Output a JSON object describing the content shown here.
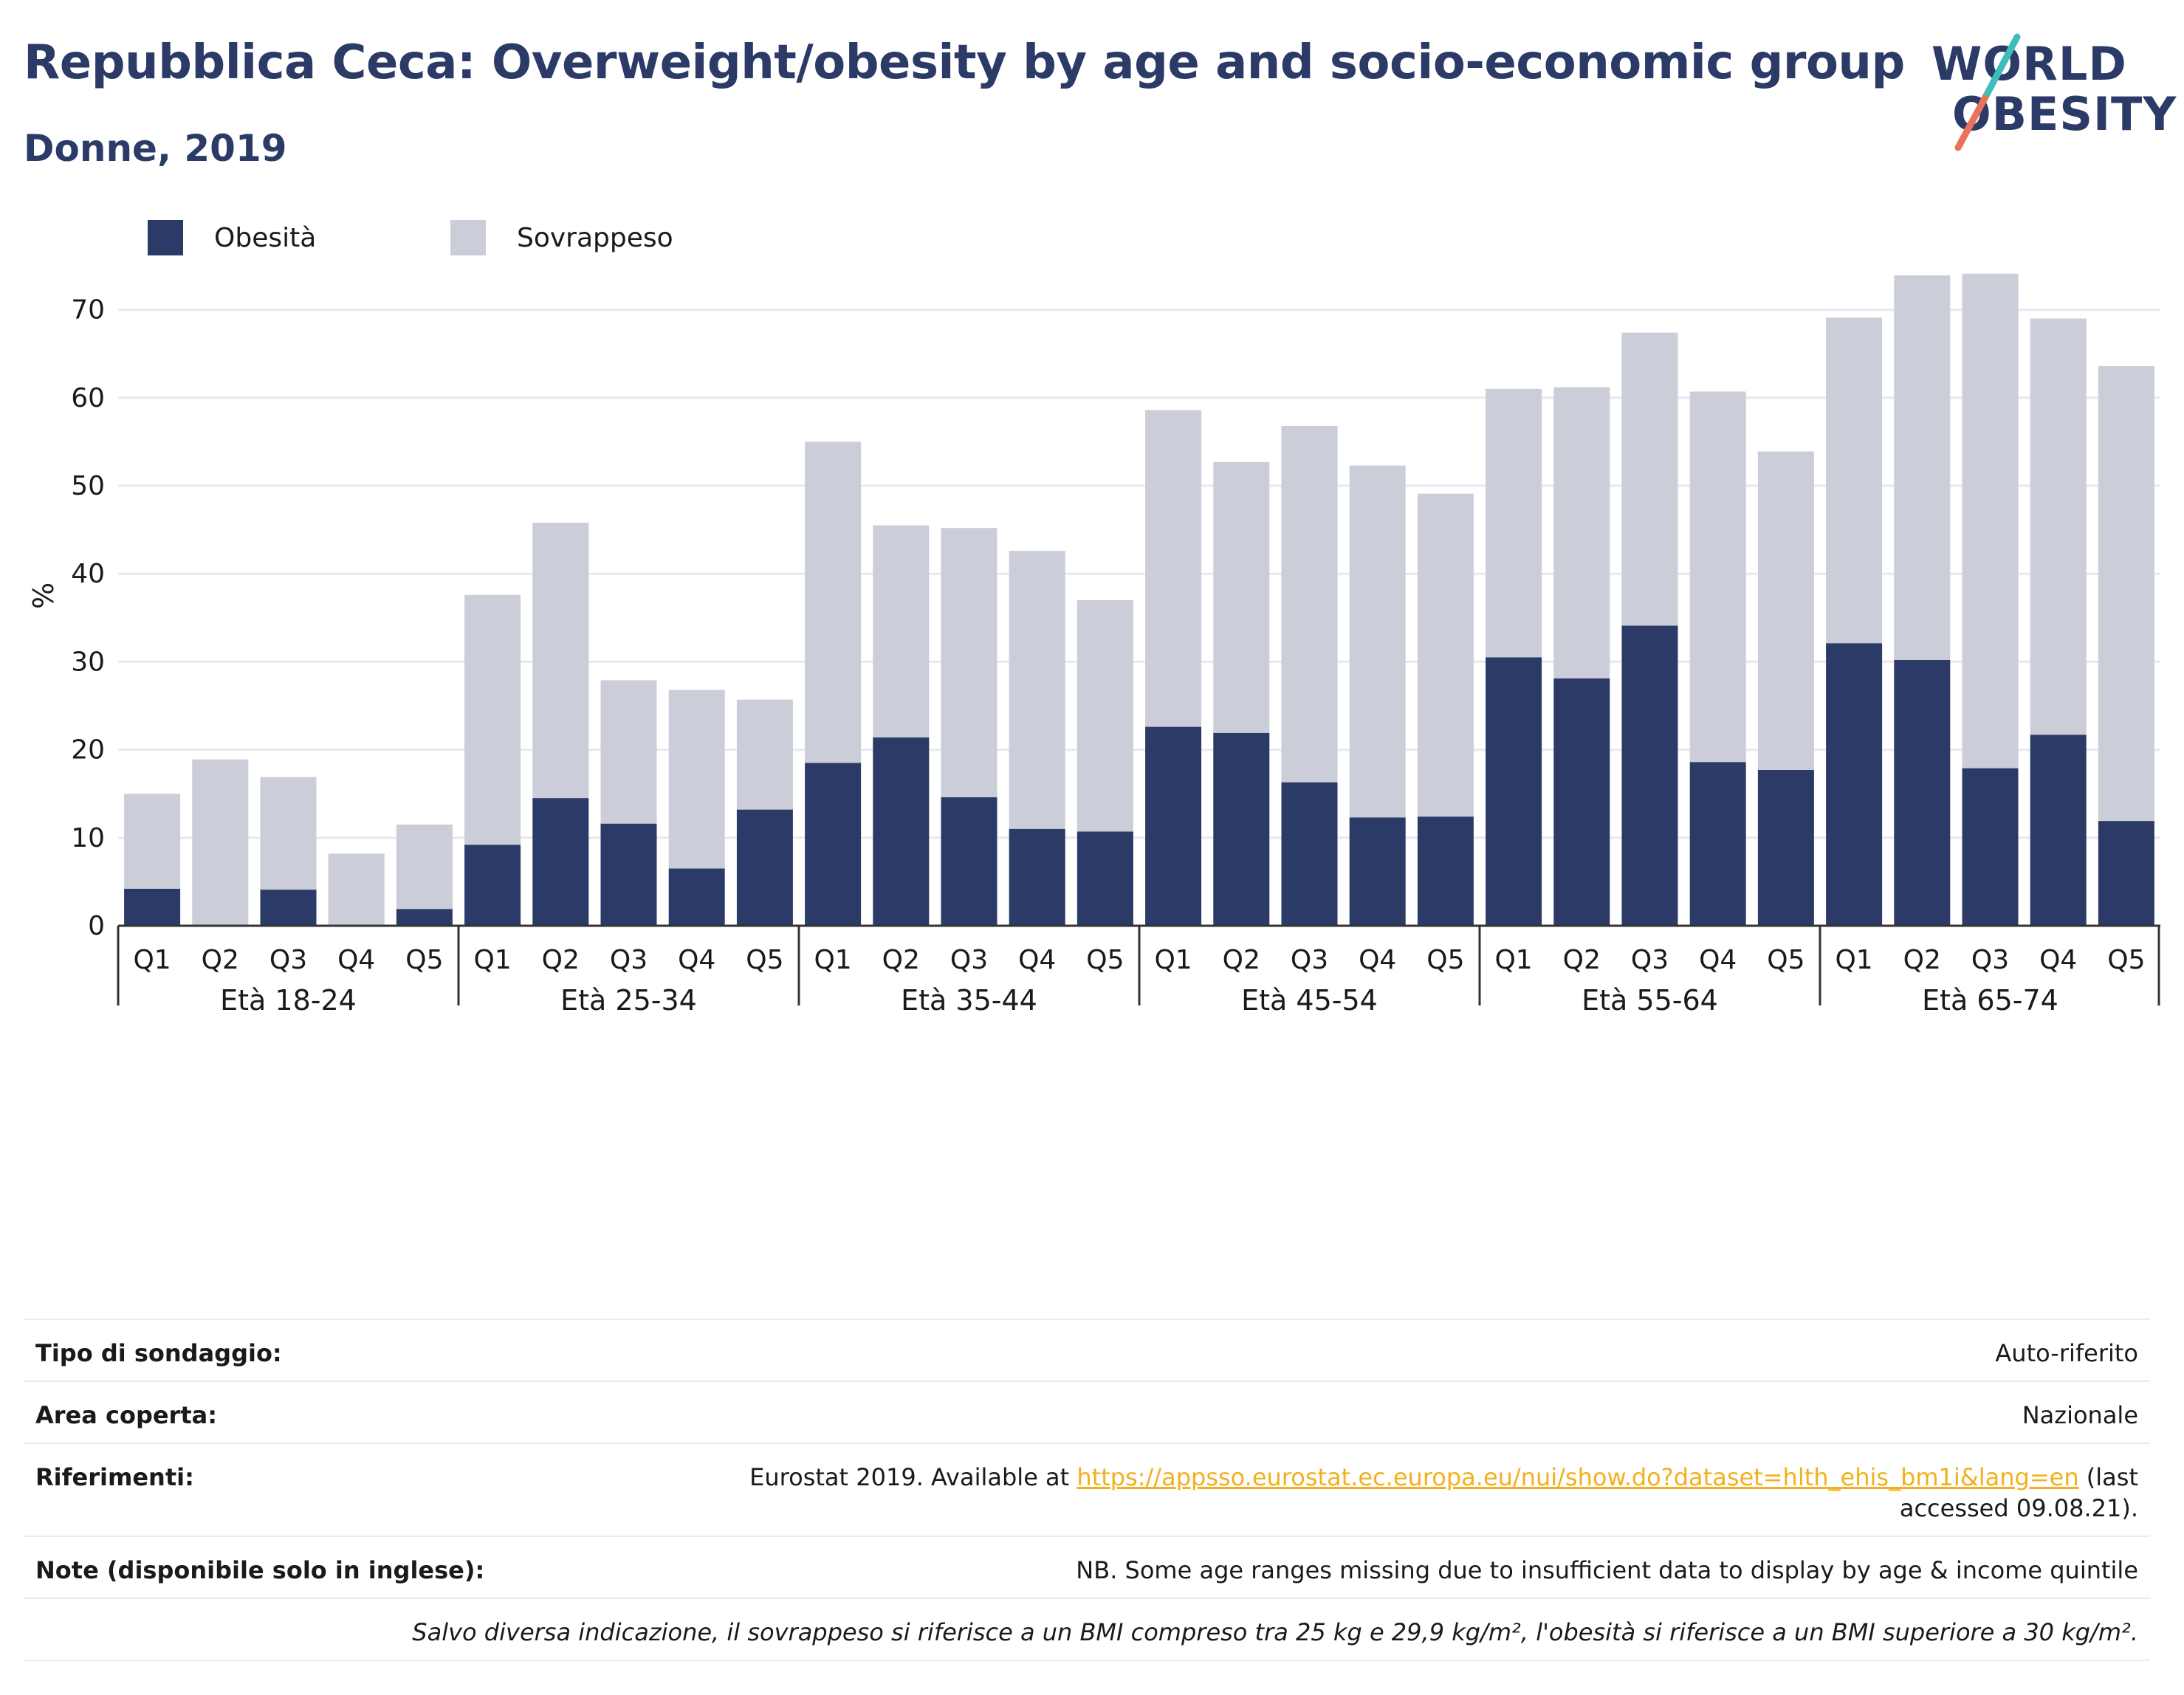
{
  "header": {
    "title": "Repubblica Ceca: Overweight/obesity by age and socio-economic group",
    "subtitle": "Donne, 2019"
  },
  "logo": {
    "line1": "WORLD",
    "line2": "OBESITY"
  },
  "legend": [
    {
      "label": "Obesità",
      "color": "#2b3a67"
    },
    {
      "label": "Sovrappeso",
      "color": "#cbcdd8"
    }
  ],
  "chart_data": {
    "type": "bar",
    "stacked": true,
    "ylabel": "%",
    "ylim": [
      0,
      75
    ],
    "yticks": [
      0,
      10,
      20,
      30,
      40,
      50,
      60,
      70
    ],
    "grid": true,
    "legend_position": "top-left",
    "groups": [
      "Età 18-24",
      "Età 25-34",
      "Età 35-44",
      "Età 45-54",
      "Età 55-64",
      "Età 65-74"
    ],
    "categories": [
      "Q1",
      "Q2",
      "Q3",
      "Q4",
      "Q5"
    ],
    "series": [
      {
        "name": "Obesità",
        "color": "#2b3a67",
        "values": [
          [
            4.2,
            0,
            4.1,
            0,
            1.9
          ],
          [
            9.2,
            14.5,
            11.6,
            6.5,
            13.2
          ],
          [
            18.5,
            21.4,
            14.6,
            11.0,
            10.7
          ],
          [
            22.6,
            21.9,
            16.3,
            12.3,
            12.4
          ],
          [
            30.5,
            28.1,
            34.1,
            18.6,
            17.7
          ],
          [
            32.1,
            30.2,
            17.9,
            21.7,
            11.9
          ]
        ]
      },
      {
        "name": "Sovrappeso",
        "color": "#cbcdd8",
        "values": [
          [
            10.8,
            18.9,
            12.8,
            8.2,
            9.6
          ],
          [
            28.4,
            31.3,
            16.3,
            20.3,
            12.5
          ],
          [
            36.5,
            24.1,
            30.6,
            31.6,
            26.3
          ],
          [
            36.0,
            30.8,
            40.5,
            40.0,
            36.7
          ],
          [
            30.5,
            33.1,
            33.3,
            42.1,
            36.2
          ],
          [
            37.0,
            43.7,
            56.2,
            47.3,
            51.7
          ]
        ]
      }
    ]
  },
  "info": [
    {
      "label": "Tipo di sondaggio:",
      "value": "Auto-riferito"
    },
    {
      "label": "Area coperta:",
      "value": "Nazionale"
    },
    {
      "label": "Riferimenti:",
      "value_prefix": "Eurostat 2019. Available at ",
      "link": "https://appsso.eurostat.ec.europa.eu/nui/show.do?dataset=hlth_ehis_bm1i&lang=en",
      "value_suffix": " (last accessed 09.08.21)."
    },
    {
      "label": "Note (disponibile solo in inglese):",
      "value": "NB. Some age ranges missing due to insufficient data to display by age & income quintile"
    },
    {
      "label": "",
      "value": "Salvo diversa indicazione, il sovrappeso si riferisce a un BMI compreso tra 25 kg e 29,9 kg/m², l'obesità si riferisce a un BMI superiore a 30 kg/m²."
    }
  ]
}
